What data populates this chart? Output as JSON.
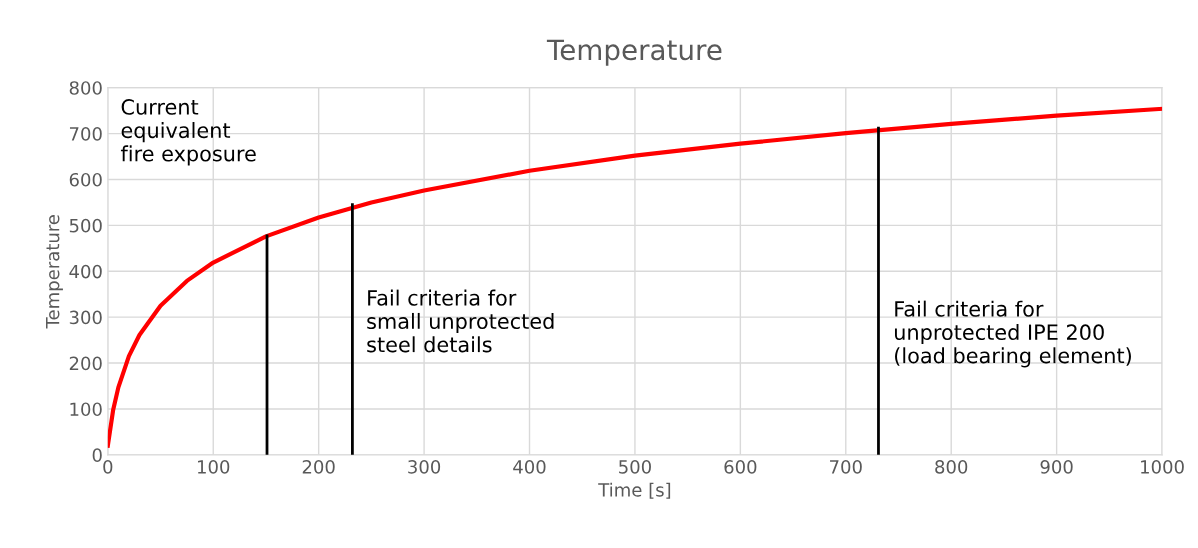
{
  "chart_data": {
    "type": "line",
    "title": "Temperature",
    "xlabel": "Time [s]",
    "ylabel": "Temperature",
    "xlim": [
      0,
      1000
    ],
    "xticks": [
      0,
      100,
      200,
      300,
      400,
      500,
      600,
      700,
      800,
      900,
      1000
    ],
    "ylim": [
      0,
      800
    ],
    "yticks": [
      0,
      100,
      200,
      300,
      400,
      500,
      600,
      700,
      800
    ],
    "grid": true,
    "series": [
      {
        "color": "#ff0000",
        "x": [
          0,
          5,
          10,
          20,
          30,
          50,
          75,
          100,
          150,
          200,
          250,
          300,
          400,
          500,
          600,
          700,
          800,
          900,
          1000
        ],
        "values": [
          20,
          97,
          147,
          215,
          261,
          325,
          379,
          419,
          476,
          517,
          550,
          576,
          619,
          652,
          678,
          701,
          721,
          739,
          754
        ]
      },
      {
        "color": "#000000",
        "x": [
          151,
          151
        ],
        "values": [
          0,
          477
        ]
      },
      {
        "color": "#000000",
        "x": [
          232,
          232
        ],
        "values": [
          0,
          545
        ]
      },
      {
        "color": "#000000",
        "x": [
          731,
          731
        ],
        "values": [
          0,
          712
        ]
      }
    ],
    "annotations": [
      "Current\nequivalent\nfire exposure",
      "Fail criteria for\nsmall unprotected\nsteel details",
      "Fail criteria for\nunprotected IPE 200\n(load bearing element)"
    ]
  }
}
